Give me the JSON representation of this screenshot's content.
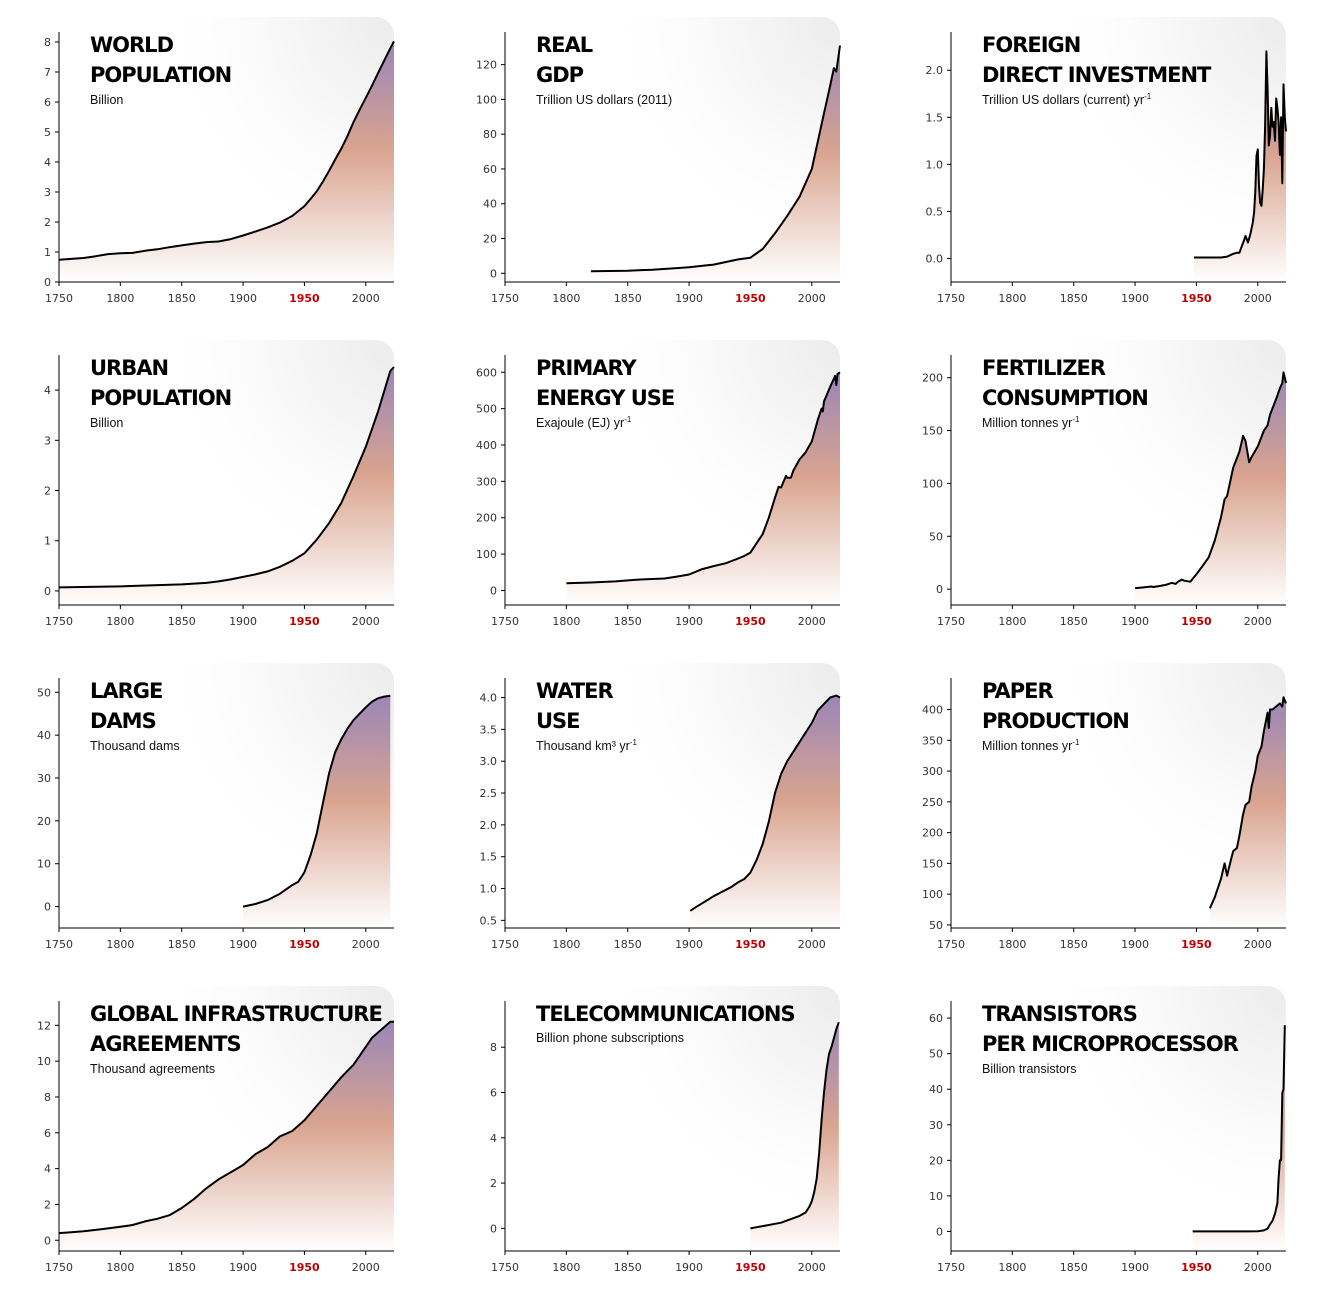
{
  "x_highlight": 1950,
  "colors": {
    "line": "#000000",
    "highlight": "#c00000",
    "fill_top": "#9a86b8",
    "fill_mid": "#d9a48f",
    "fill_bottom": "#ffffff"
  },
  "chart_data": [
    {
      "type": "area",
      "title": [
        "WORLD",
        "POPULATION"
      ],
      "unit": "Billion",
      "unit_sup": "",
      "xlim": [
        1750,
        2023
      ],
      "ylim": [
        0,
        8
      ],
      "yticks": [
        0,
        1,
        2,
        3,
        4,
        5,
        6,
        7,
        8
      ],
      "ytick_labels": [
        "0",
        "1",
        "2",
        "3",
        "4",
        "5",
        "6",
        "7",
        "8"
      ],
      "xticks": [
        1750,
        1800,
        1850,
        1900,
        1950,
        2000
      ],
      "xtick_labels": [
        "1750",
        "1800",
        "1850",
        "1900",
        "1950",
        "2000"
      ],
      "x": [
        1750,
        1760,
        1770,
        1780,
        1790,
        1800,
        1810,
        1820,
        1830,
        1840,
        1850,
        1860,
        1870,
        1880,
        1890,
        1900,
        1910,
        1920,
        1930,
        1940,
        1950,
        1955,
        1960,
        1965,
        1970,
        1975,
        1980,
        1985,
        1990,
        1995,
        2000,
        2005,
        2010,
        2015,
        2020,
        2023
      ],
      "y": [
        0.74,
        0.77,
        0.8,
        0.86,
        0.93,
        0.96,
        0.97,
        1.04,
        1.09,
        1.16,
        1.22,
        1.28,
        1.33,
        1.35,
        1.43,
        1.55,
        1.68,
        1.82,
        1.98,
        2.2,
        2.53,
        2.77,
        3.02,
        3.34,
        3.7,
        4.08,
        4.44,
        4.86,
        5.33,
        5.74,
        6.14,
        6.54,
        6.96,
        7.38,
        7.79,
        8.02
      ]
    },
    {
      "type": "area",
      "title": [
        "REAL",
        "GDP"
      ],
      "unit": "Trillion US dollars (2011)",
      "unit_sup": "",
      "xlim": [
        1750,
        2023
      ],
      "ylim": [
        -5,
        133
      ],
      "yticks": [
        0,
        20,
        40,
        60,
        80,
        100,
        120
      ],
      "ytick_labels": [
        "0",
        "20",
        "40",
        "60",
        "80",
        "100",
        "120"
      ],
      "xticks": [
        1750,
        1800,
        1850,
        1900,
        1950,
        2000
      ],
      "xtick_labels": [
        "1750",
        "1800",
        "1850",
        "1900",
        "1950",
        "2000"
      ],
      "x": [
        1820,
        1850,
        1870,
        1890,
        1900,
        1913,
        1920,
        1930,
        1940,
        1950,
        1960,
        1970,
        1980,
        1990,
        2000,
        2005,
        2010,
        2015,
        2018,
        2020,
        2023
      ],
      "y": [
        1.2,
        1.5,
        2,
        3,
        3.5,
        4.5,
        5,
        6.5,
        8,
        9,
        14,
        23,
        33,
        44,
        60,
        76,
        92,
        108,
        118,
        116,
        131
      ]
    },
    {
      "type": "area",
      "title": [
        "FOREIGN",
        "DIRECT INVESTMENT"
      ],
      "unit": "Trillion US dollars (current) yr",
      "unit_sup": "-1",
      "xlim": [
        1750,
        2023
      ],
      "ylim": [
        -0.25,
        2.3
      ],
      "yticks": [
        0,
        0.5,
        1,
        1.5,
        2
      ],
      "ytick_labels": [
        "0.0",
        "0.5",
        "1.0",
        "1.5",
        "2.0"
      ],
      "xticks": [
        1750,
        1800,
        1850,
        1900,
        1950,
        2000
      ],
      "xtick_labels": [
        "1750",
        "1800",
        "1850",
        "1900",
        "1950",
        "2000"
      ],
      "x": [
        1948,
        1955,
        1960,
        1965,
        1970,
        1975,
        1980,
        1983,
        1985,
        1987,
        1989,
        1990,
        1992,
        1994,
        1996,
        1997,
        1998,
        1999,
        2000,
        2001,
        2002,
        2003,
        2004,
        2005,
        2006,
        2007,
        2008,
        2009,
        2010,
        2011,
        2012,
        2013,
        2014,
        2015,
        2016,
        2017,
        2018,
        2019,
        2020,
        2021,
        2022,
        2023
      ],
      "y": [
        0.01,
        0.01,
        0.01,
        0.01,
        0.01,
        0.02,
        0.05,
        0.06,
        0.06,
        0.13,
        0.2,
        0.24,
        0.17,
        0.26,
        0.39,
        0.49,
        0.71,
        1.09,
        1.16,
        0.77,
        0.59,
        0.56,
        0.73,
        0.95,
        1.4,
        2.2,
        1.8,
        1.2,
        1.3,
        1.6,
        1.4,
        1.45,
        1.25,
        1.7,
        1.6,
        1.45,
        1.1,
        1.5,
        0.8,
        1.85,
        1.5,
        1.35
      ]
    },
    {
      "type": "area",
      "title": [
        "URBAN",
        "POPULATION"
      ],
      "unit": "Billion",
      "unit_sup": "",
      "xlim": [
        1750,
        2023
      ],
      "ylim": [
        -0.28,
        4.5
      ],
      "yticks": [
        0,
        1,
        2,
        3,
        4
      ],
      "ytick_labels": [
        "0",
        "1",
        "2",
        "3",
        "4"
      ],
      "xticks": [
        1750,
        1800,
        1850,
        1900,
        1950,
        2000
      ],
      "xtick_labels": [
        "1750",
        "1800",
        "1850",
        "1900",
        "1950",
        "2000"
      ],
      "x": [
        1750,
        1800,
        1850,
        1870,
        1880,
        1890,
        1900,
        1910,
        1920,
        1930,
        1940,
        1950,
        1960,
        1970,
        1980,
        1990,
        2000,
        2010,
        2020,
        2023
      ],
      "y": [
        0.07,
        0.09,
        0.13,
        0.16,
        0.19,
        0.23,
        0.28,
        0.33,
        0.39,
        0.48,
        0.6,
        0.75,
        1.02,
        1.35,
        1.75,
        2.29,
        2.87,
        3.57,
        4.38,
        4.46
      ]
    },
    {
      "type": "area",
      "title": [
        "PRIMARY",
        "ENERGY USE"
      ],
      "unit": "Exajoule (EJ) yr",
      "unit_sup": "-1",
      "xlim": [
        1750,
        2023
      ],
      "ylim": [
        -40,
        620
      ],
      "yticks": [
        0,
        100,
        200,
        300,
        400,
        500,
        600
      ],
      "ytick_labels": [
        "0",
        "100",
        "200",
        "300",
        "400",
        "500",
        "600"
      ],
      "x": [
        1800,
        1820,
        1840,
        1860,
        1880,
        1890,
        1900,
        1910,
        1920,
        1930,
        1940,
        1945,
        1950,
        1955,
        1960,
        1965,
        1970,
        1973,
        1975,
        1979,
        1980,
        1983,
        1985,
        1990,
        1995,
        2000,
        2005,
        2008,
        2009,
        2010,
        2015,
        2019,
        2020,
        2021,
        2023
      ],
      "xticks": [
        1750,
        1800,
        1850,
        1900,
        1950,
        2000
      ],
      "xtick_labels": [
        "1750",
        "1800",
        "1850",
        "1900",
        "1950",
        "2000"
      ],
      "y": [
        20,
        22,
        25,
        30,
        33,
        38,
        44,
        58,
        67,
        75,
        88,
        95,
        104,
        130,
        155,
        200,
        255,
        285,
        283,
        315,
        310,
        310,
        330,
        360,
        380,
        410,
        470,
        500,
        492,
        520,
        560,
        590,
        565,
        595,
        600
      ]
    },
    {
      "type": "area",
      "title": [
        "FERTILIZER",
        "CONSUMPTION"
      ],
      "unit": "Million tonnes yr",
      "unit_sup": "-1",
      "xlim": [
        1750,
        2023
      ],
      "ylim": [
        -15,
        212
      ],
      "yticks": [
        0,
        50,
        100,
        150,
        200
      ],
      "ytick_labels": [
        "0",
        "50",
        "100",
        "150",
        "200"
      ],
      "xticks": [
        1750,
        1800,
        1850,
        1900,
        1950,
        2000
      ],
      "xtick_labels": [
        "1750",
        "1800",
        "1850",
        "1900",
        "1950",
        "2000"
      ],
      "x": [
        1900,
        1905,
        1910,
        1913,
        1915,
        1920,
        1925,
        1930,
        1933,
        1935,
        1938,
        1940,
        1945,
        1950,
        1955,
        1960,
        1965,
        1970,
        1973,
        1975,
        1980,
        1985,
        1988,
        1990,
        1993,
        1995,
        2000,
        2005,
        2008,
        2010,
        2015,
        2018,
        2020,
        2021,
        2023
      ],
      "y": [
        1,
        1.5,
        2,
        2.5,
        2,
        3,
        4,
        6,
        5,
        7,
        9,
        8,
        7,
        14,
        22,
        30,
        46,
        68,
        85,
        88,
        115,
        130,
        145,
        140,
        120,
        125,
        135,
        150,
        155,
        165,
        180,
        190,
        195,
        205,
        195
      ]
    },
    {
      "type": "area",
      "title": [
        "LARGE",
        "DAMS"
      ],
      "unit": "Thousand dams",
      "unit_sup": "",
      "xlim": [
        1750,
        2023
      ],
      "ylim": [
        -5,
        51
      ],
      "yticks": [
        0,
        10,
        20,
        30,
        40,
        50
      ],
      "ytick_labels": [
        "0",
        "10",
        "20",
        "30",
        "40",
        "50"
      ],
      "xticks": [
        1750,
        1800,
        1850,
        1900,
        1950,
        2000
      ],
      "xtick_labels": [
        "1750",
        "1800",
        "1850",
        "1900",
        "1950",
        "2000"
      ],
      "x": [
        1900,
        1910,
        1920,
        1930,
        1940,
        1945,
        1950,
        1955,
        1960,
        1965,
        1970,
        1975,
        1980,
        1985,
        1990,
        1995,
        2000,
        2005,
        2010,
        2015,
        2020
      ],
      "y": [
        0,
        0.6,
        1.5,
        3,
        5,
        5.8,
        8,
        12,
        17,
        24,
        31,
        36,
        39,
        41.5,
        43.5,
        45,
        46.5,
        47.8,
        48.6,
        49,
        49.2
      ]
    },
    {
      "type": "area",
      "title": [
        "WATER",
        "USE"
      ],
      "unit": "Thousand km³ yr",
      "unit_sup": "-1",
      "xlim": [
        1750,
        2023
      ],
      "ylim": [
        0.38,
        4.15
      ],
      "yticks": [
        0.5,
        1,
        1.5,
        2,
        2.5,
        3,
        3.5,
        4
      ],
      "ytick_labels": [
        "0.5",
        "1.0",
        "1.5",
        "2.0",
        "2.5",
        "3.0",
        "3.5",
        "4.0"
      ],
      "xticks": [
        1750,
        1800,
        1850,
        1900,
        1950,
        2000
      ],
      "xtick_labels": [
        "1750",
        "1800",
        "1850",
        "1900",
        "1950",
        "2000"
      ],
      "x": [
        1901,
        1905,
        1910,
        1915,
        1920,
        1925,
        1930,
        1935,
        1940,
        1945,
        1950,
        1955,
        1960,
        1965,
        1970,
        1975,
        1980,
        1985,
        1990,
        1995,
        2000,
        2005,
        2010,
        2015,
        2020,
        2023
      ],
      "y": [
        0.65,
        0.7,
        0.76,
        0.82,
        0.88,
        0.93,
        0.98,
        1.03,
        1.1,
        1.15,
        1.25,
        1.45,
        1.7,
        2.05,
        2.5,
        2.8,
        3.0,
        3.15,
        3.3,
        3.45,
        3.6,
        3.8,
        3.9,
        4.0,
        4.03,
        4.0
      ]
    },
    {
      "type": "area",
      "title": [
        "PAPER",
        "PRODUCTION"
      ],
      "unit": "Million tonnes yr",
      "unit_sup": "-1",
      "xlim": [
        1750,
        2023
      ],
      "ylim": [
        45,
        435
      ],
      "yticks": [
        50,
        100,
        150,
        200,
        250,
        300,
        350,
        400
      ],
      "ytick_labels": [
        "50",
        "100",
        "150",
        "200",
        "250",
        "300",
        "350",
        "400"
      ],
      "xticks": [
        1750,
        1800,
        1850,
        1900,
        1950,
        2000
      ],
      "xtick_labels": [
        "1750",
        "1800",
        "1850",
        "1900",
        "1950",
        "2000"
      ],
      "x": [
        1961,
        1965,
        1970,
        1973,
        1975,
        1978,
        1980,
        1983,
        1985,
        1988,
        1990,
        1993,
        1995,
        1998,
        2000,
        2003,
        2005,
        2008,
        2009,
        2010,
        2012,
        2015,
        2018,
        2020,
        2021,
        2023
      ],
      "y": [
        77,
        95,
        125,
        150,
        130,
        155,
        170,
        175,
        195,
        230,
        245,
        250,
        275,
        300,
        325,
        340,
        365,
        395,
        370,
        400,
        400,
        405,
        410,
        405,
        420,
        410
      ]
    },
    {
      "type": "area",
      "title": [
        "GLOBAL INFRASTRUCTURE",
        "AGREEMENTS"
      ],
      "unit": "Thousand agreements",
      "unit_sup": "",
      "xlim": [
        1750,
        2023
      ],
      "ylim": [
        -0.6,
        12.8
      ],
      "yticks": [
        0,
        2,
        4,
        6,
        8,
        10,
        12
      ],
      "ytick_labels": [
        "0",
        "2",
        "4",
        "6",
        "8",
        "10",
        "12"
      ],
      "xticks": [
        1750,
        1800,
        1850,
        1900,
        1950,
        2000
      ],
      "xtick_labels": [
        "1750",
        "1800",
        "1850",
        "1900",
        "1950",
        "2000"
      ],
      "x": [
        1750,
        1760,
        1770,
        1780,
        1790,
        1800,
        1810,
        1820,
        1830,
        1840,
        1850,
        1860,
        1870,
        1880,
        1890,
        1900,
        1910,
        1920,
        1930,
        1940,
        1950,
        1960,
        1970,
        1980,
        1990,
        2000,
        2005,
        2010,
        2015,
        2020,
        2023
      ],
      "y": [
        0.4,
        0.45,
        0.5,
        0.58,
        0.66,
        0.75,
        0.85,
        1.05,
        1.2,
        1.4,
        1.8,
        2.3,
        2.9,
        3.4,
        3.8,
        4.2,
        4.8,
        5.2,
        5.8,
        6.1,
        6.7,
        7.5,
        8.3,
        9.1,
        9.8,
        10.8,
        11.3,
        11.6,
        11.9,
        12.2,
        12.2
      ]
    },
    {
      "type": "area",
      "title": [
        "TELECOMMUNICATIONS"
      ],
      "unit": "Billion phone subscriptions",
      "unit_sup": "",
      "xlim": [
        1750,
        2023
      ],
      "ylim": [
        -1,
        9.6
      ],
      "yticks": [
        0,
        2,
        4,
        6,
        8
      ],
      "ytick_labels": [
        "0",
        "2",
        "4",
        "6",
        "8"
      ],
      "xticks": [
        1750,
        1800,
        1850,
        1900,
        1950,
        2000
      ],
      "xtick_labels": [
        "1750",
        "1800",
        "1850",
        "1900",
        "1950",
        "2000"
      ],
      "x": [
        1950,
        1955,
        1960,
        1965,
        1970,
        1975,
        1980,
        1985,
        1990,
        1995,
        1998,
        2000,
        2002,
        2004,
        2006,
        2008,
        2010,
        2012,
        2014,
        2016,
        2018,
        2020,
        2022
      ],
      "y": [
        0,
        0.05,
        0.1,
        0.15,
        0.2,
        0.25,
        0.35,
        0.45,
        0.55,
        0.7,
        0.95,
        1.2,
        1.6,
        2.2,
        3.3,
        4.8,
        6.0,
        7.0,
        7.7,
        8.0,
        8.4,
        8.8,
        9.1
      ]
    },
    {
      "type": "area",
      "title": [
        "TRANSISTORS",
        "PER MICROPROCESSOR"
      ],
      "unit": "Billion transistors",
      "unit_sup": "",
      "xlim": [
        1750,
        2023
      ],
      "ylim": [
        -5.5,
        62
      ],
      "yticks": [
        0,
        10,
        20,
        30,
        40,
        50,
        60
      ],
      "ytick_labels": [
        "0",
        "10",
        "20",
        "30",
        "40",
        "50",
        "60"
      ],
      "xticks": [
        1750,
        1800,
        1850,
        1900,
        1950,
        2000
      ],
      "xtick_labels": [
        "1750",
        "1800",
        "1850",
        "1900",
        "1950",
        "2000"
      ],
      "x": [
        1947,
        1971,
        1990,
        2000,
        2005,
        2008,
        2010,
        2012,
        2014,
        2016,
        2017,
        2018,
        2019,
        2020,
        2021,
        2022
      ],
      "y": [
        0,
        0,
        0,
        0.05,
        0.3,
        0.8,
        2,
        3,
        5,
        8,
        15,
        20,
        20,
        39,
        40,
        58
      ]
    }
  ]
}
